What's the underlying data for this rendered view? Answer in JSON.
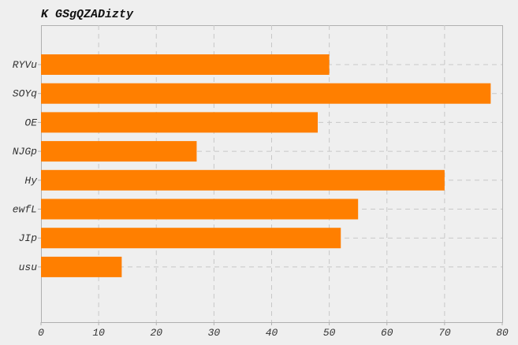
{
  "chart_data": {
    "type": "bar",
    "orientation": "horizontal",
    "title": "K GSgQZADizty",
    "xlabel": "",
    "ylabel": "",
    "categories": [
      "RYVu",
      "SOYq",
      "OE",
      "NJGp",
      "Hy",
      "ewfL",
      "JIp",
      "usu"
    ],
    "values": [
      50,
      78,
      48,
      27,
      70,
      55,
      52,
      14
    ],
    "xlim": [
      0,
      80
    ],
    "xticks": [
      "0",
      "10",
      "20",
      "30",
      "40",
      "50",
      "60",
      "70",
      "80"
    ],
    "grid": true,
    "legend": "none",
    "colors": {
      "bar": "#ff7f00",
      "background": "#efefef",
      "grid": "#c8c8c8",
      "axis": "#b0b0b0",
      "text": "#333333"
    }
  }
}
